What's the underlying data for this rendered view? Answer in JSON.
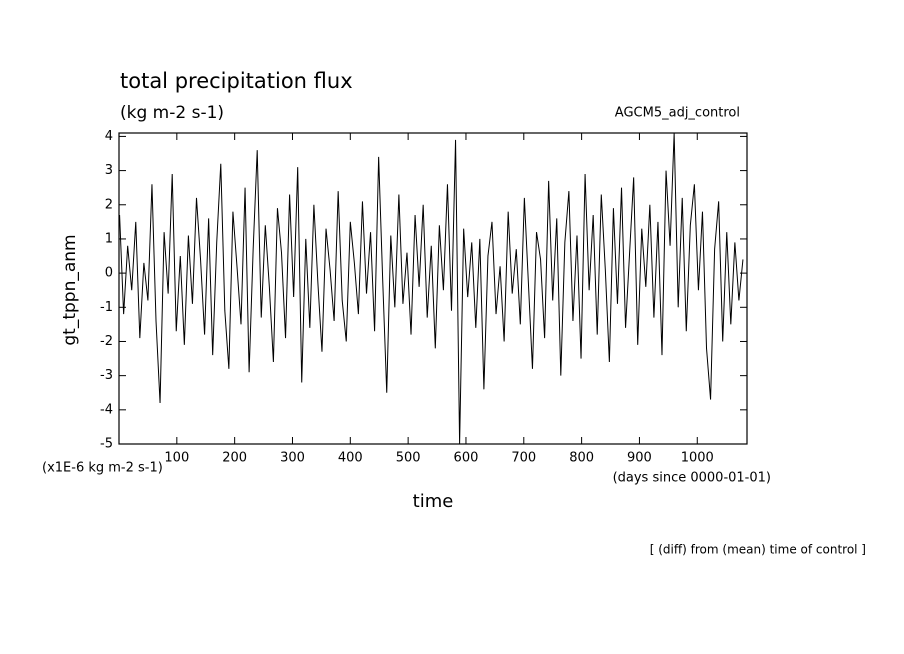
{
  "chart_data": {
    "type": "line",
    "title": "total precipitation flux",
    "subtitle": "(kg m-2 s-1)",
    "run_label": "AGCM5_adj_control",
    "y_label": "gt_tppn_anm",
    "y_units": "(x1E-6 kg m-2 s-1)",
    "x_units": "(days since 0000-01-01)",
    "x_label": "time",
    "footnote": "[ (diff) from (mean) time of control ]",
    "color": "#000000",
    "xlim": [
      0,
      1086
    ],
    "ylim": [
      -5,
      4.1
    ],
    "xticks": [
      100,
      200,
      300,
      400,
      500,
      600,
      700,
      800,
      900,
      1000
    ],
    "yticks": [
      -5,
      -4,
      -3,
      -2,
      -1,
      0,
      1,
      2,
      3,
      4
    ],
    "x": [
      1,
      8,
      15,
      22,
      29,
      36,
      43,
      50,
      57,
      64,
      71,
      78,
      85,
      92,
      99,
      106,
      113,
      120,
      127,
      134,
      141,
      148,
      155,
      162,
      169,
      176,
      183,
      190,
      197,
      204,
      211,
      218,
      225,
      232,
      239,
      246,
      253,
      260,
      267,
      274,
      281,
      288,
      295,
      302,
      309,
      316,
      323,
      330,
      337,
      344,
      351,
      358,
      365,
      372,
      379,
      386,
      393,
      400,
      407,
      414,
      421,
      428,
      435,
      442,
      449,
      456,
      463,
      470,
      477,
      484,
      491,
      498,
      505,
      512,
      519,
      526,
      533,
      540,
      547,
      554,
      561,
      568,
      575,
      582,
      589,
      596,
      603,
      610,
      617,
      624,
      631,
      638,
      645,
      652,
      659,
      666,
      673,
      680,
      687,
      694,
      701,
      708,
      715,
      722,
      729,
      736,
      743,
      750,
      757,
      764,
      771,
      778,
      785,
      792,
      799,
      806,
      813,
      820,
      827,
      834,
      841,
      848,
      855,
      862,
      869,
      876,
      883,
      890,
      897,
      904,
      911,
      918,
      925,
      932,
      939,
      946,
      953,
      960,
      967,
      974,
      981,
      988,
      995,
      1002,
      1009,
      1016,
      1023,
      1030,
      1037,
      1044,
      1051,
      1058,
      1065,
      1072,
      1079
    ],
    "values": [
      1.7,
      -1.2,
      0.8,
      -0.5,
      1.5,
      -1.9,
      0.3,
      -0.8,
      2.6,
      -1.4,
      -3.8,
      1.2,
      -0.6,
      2.9,
      -1.7,
      0.5,
      -2.1,
      1.1,
      -0.9,
      2.2,
      0.4,
      -1.8,
      1.6,
      -2.4,
      0.9,
      3.2,
      -1.1,
      -2.8,
      1.8,
      0.2,
      -1.5,
      2.5,
      -2.9,
      0.7,
      3.6,
      -1.3,
      1.4,
      -0.4,
      -2.6,
      1.9,
      0.6,
      -1.9,
      2.3,
      -0.7,
      3.1,
      -3.2,
      1.0,
      -1.6,
      2.0,
      -0.3,
      -2.3,
      1.3,
      0.1,
      -1.4,
      2.4,
      -0.8,
      -2.0,
      1.5,
      0.3,
      -1.2,
      2.1,
      -0.6,
      1.2,
      -1.7,
      3.4,
      -0.2,
      -3.5,
      1.1,
      -1.0,
      2.3,
      -0.9,
      0.6,
      -1.8,
      1.7,
      -0.4,
      2.0,
      -1.3,
      0.8,
      -2.2,
      1.4,
      -0.5,
      2.6,
      -1.1,
      3.9,
      -5.0,
      1.3,
      -0.7,
      0.9,
      -1.6,
      1.0,
      -3.4,
      0.5,
      1.5,
      -1.2,
      0.2,
      -2.0,
      1.8,
      -0.6,
      0.7,
      -1.5,
      2.2,
      -0.3,
      -2.8,
      1.2,
      0.4,
      -1.9,
      2.7,
      -0.8,
      1.6,
      -3.0,
      0.9,
      2.4,
      -1.4,
      1.1,
      -2.5,
      2.9,
      -0.5,
      1.7,
      -1.8,
      2.3,
      0.1,
      -2.6,
      1.9,
      -0.9,
      2.5,
      -1.6,
      0.6,
      2.8,
      -2.1,
      1.3,
      -0.4,
      2.0,
      -1.3,
      1.5,
      -2.4,
      3.0,
      0.8,
      4.1,
      -1.0,
      2.2,
      -1.7,
      1.4,
      2.6,
      -0.5,
      1.8,
      -2.2,
      -3.7,
      0.7,
      2.1,
      -2.0,
      1.2,
      -1.5,
      0.9,
      -0.8,
      0.4
    ]
  }
}
